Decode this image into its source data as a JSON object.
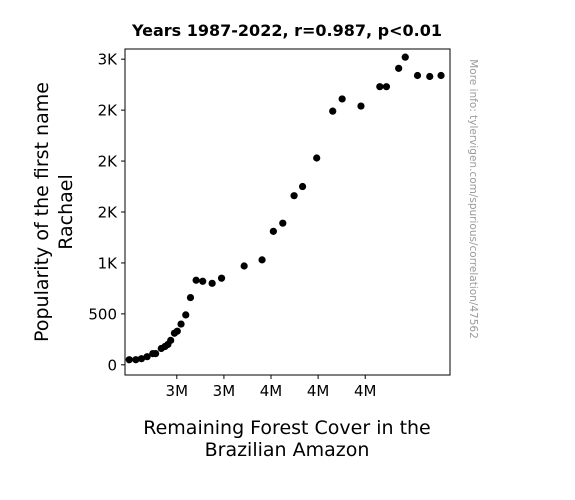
{
  "chart_data": {
    "type": "scatter",
    "title": "Years 1987-2022, r=0.987, p<0.01",
    "xlabel_lines": [
      "Remaining Forest Cover in the",
      "Brazilian Amazon"
    ],
    "ylabel_lines": [
      "Popularity of the first name",
      "Rachael"
    ],
    "watermark": "More info: tylervigen.com/spurious/correlation/47562",
    "xlim": [
      3.395,
      3.74
    ],
    "ylim": [
      -100,
      3100
    ],
    "x_ticks": [
      {
        "value": 3.45,
        "label": "3M"
      },
      {
        "value": 3.5,
        "label": "3M"
      },
      {
        "value": 3.55,
        "label": "4M"
      },
      {
        "value": 3.6,
        "label": "4M"
      },
      {
        "value": 3.65,
        "label": "4M"
      }
    ],
    "y_ticks": [
      {
        "value": 0,
        "label": "0"
      },
      {
        "value": 500,
        "label": "500"
      },
      {
        "value": 1000,
        "label": "1K"
      },
      {
        "value": 1500,
        "label": "2K"
      },
      {
        "value": 2000,
        "label": "2K"
      },
      {
        "value": 2500,
        "label": "2K"
      },
      {
        "value": 3000,
        "label": "3K"
      }
    ],
    "marker_color": "#000000",
    "points": [
      {
        "x": 3.7305,
        "y": 2840
      },
      {
        "x": 3.7185,
        "y": 2830
      },
      {
        "x": 3.7055,
        "y": 2840
      },
      {
        "x": 3.6925,
        "y": 3020
      },
      {
        "x": 3.6855,
        "y": 2910
      },
      {
        "x": 3.6725,
        "y": 2730
      },
      {
        "x": 3.6655,
        "y": 2730
      },
      {
        "x": 3.6455,
        "y": 2540
      },
      {
        "x": 3.6255,
        "y": 2610
      },
      {
        "x": 3.6155,
        "y": 2490
      },
      {
        "x": 3.5985,
        "y": 2030
      },
      {
        "x": 3.5835,
        "y": 1750
      },
      {
        "x": 3.5745,
        "y": 1660
      },
      {
        "x": 3.5625,
        "y": 1390
      },
      {
        "x": 3.5525,
        "y": 1310
      },
      {
        "x": 3.5405,
        "y": 1030
      },
      {
        "x": 3.5215,
        "y": 970
      },
      {
        "x": 3.4975,
        "y": 850
      },
      {
        "x": 3.4875,
        "y": 800
      },
      {
        "x": 3.4775,
        "y": 820
      },
      {
        "x": 3.4705,
        "y": 830
      },
      {
        "x": 3.4645,
        "y": 660
      },
      {
        "x": 3.4595,
        "y": 490
      },
      {
        "x": 3.4545,
        "y": 400
      },
      {
        "x": 3.4505,
        "y": 330
      },
      {
        "x": 3.4475,
        "y": 310
      },
      {
        "x": 3.4435,
        "y": 240
      },
      {
        "x": 3.4405,
        "y": 200
      },
      {
        "x": 3.4375,
        "y": 180
      },
      {
        "x": 3.4335,
        "y": 160
      },
      {
        "x": 3.4275,
        "y": 110
      },
      {
        "x": 3.4245,
        "y": 110
      },
      {
        "x": 3.4185,
        "y": 80
      },
      {
        "x": 3.4125,
        "y": 60
      },
      {
        "x": 3.4065,
        "y": 50
      },
      {
        "x": 3.3995,
        "y": 50
      }
    ]
  }
}
